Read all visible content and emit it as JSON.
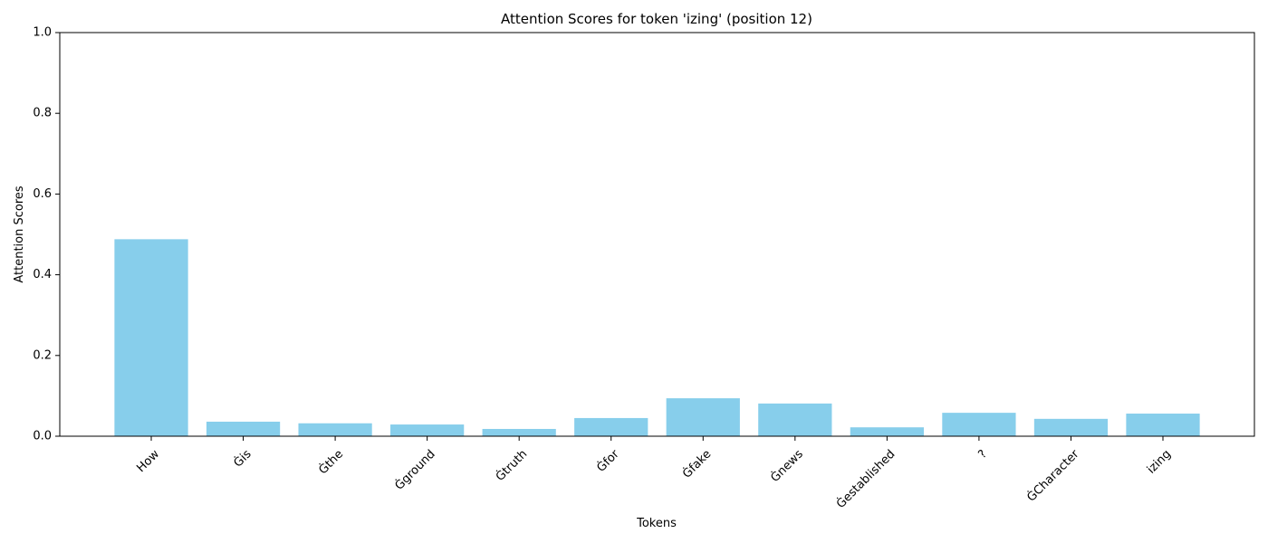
{
  "chart_data": {
    "type": "bar",
    "title": "Attention Scores for token 'izing' (position 12)",
    "xlabel": "Tokens",
    "ylabel": "Attention Scores",
    "ylim": [
      0,
      1.0
    ],
    "yticks": [
      "0.0",
      "0.2",
      "0.4",
      "0.6",
      "0.8",
      "1.0"
    ],
    "categories": [
      "How",
      "Ġis",
      "Ġthe",
      "Ġground",
      "Ġtruth",
      "Ġfor",
      "Ġfake",
      "Ġnews",
      "Ġestablished",
      "?",
      "ĠCharacter",
      "izing"
    ],
    "values": [
      0.488,
      0.036,
      0.032,
      0.029,
      0.018,
      0.045,
      0.094,
      0.081,
      0.022,
      0.058,
      0.043,
      0.056
    ],
    "grid": false,
    "bar_color": "#87ceeb"
  }
}
